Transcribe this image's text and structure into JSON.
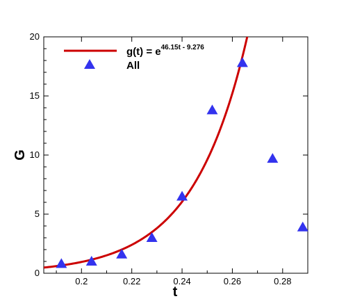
{
  "chart_data": {
    "type": "line",
    "xlabel": "t",
    "ylabel": "G",
    "xlim": [
      0.185,
      0.29
    ],
    "ylim": [
      0,
      20
    ],
    "xticks": [
      0.2,
      0.22,
      0.24,
      0.26,
      0.28
    ],
    "xtick_labels": [
      "0.2",
      "0.22",
      "0.24",
      "0.26",
      "0.28"
    ],
    "yticks": [
      0,
      5,
      10,
      15,
      20
    ],
    "ytick_labels": [
      "0",
      "5",
      "10",
      "15",
      "20"
    ],
    "grid": false,
    "legend_position": "top-left",
    "series": [
      {
        "name_main": "g(t) = e",
        "name_exponent": "46.15t - 9.276",
        "kind": "line",
        "color": "#cc0000",
        "function": {
          "a": 46.15,
          "b": -9.276
        }
      },
      {
        "name": "All",
        "kind": "scatter",
        "marker": "triangle",
        "color": "#3333ee",
        "x": [
          0.192,
          0.204,
          0.216,
          0.228,
          0.24,
          0.252,
          0.264,
          0.276,
          0.288
        ],
        "y": [
          0.8,
          1.0,
          1.6,
          3.0,
          6.5,
          13.8,
          17.8,
          9.7,
          3.9
        ]
      }
    ]
  }
}
